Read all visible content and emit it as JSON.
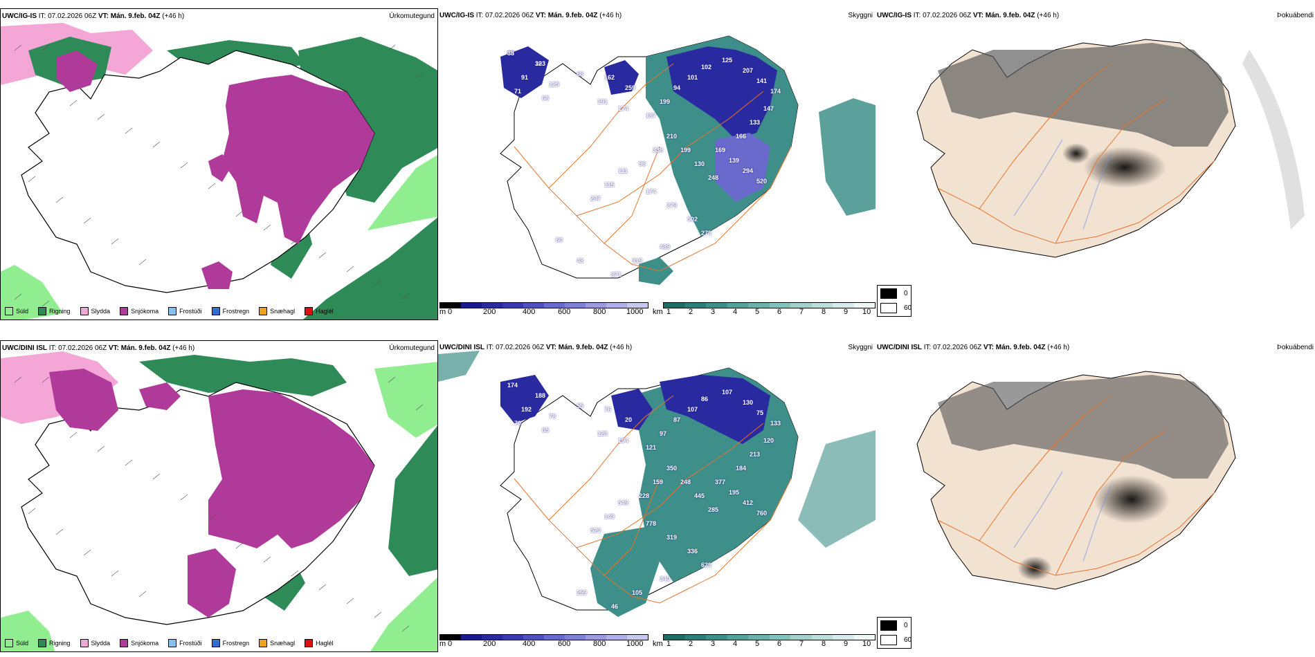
{
  "rows": [
    {
      "id": "top",
      "model": "UWC/IG-IS",
      "it_label": "IT:",
      "it_value": "07.02.2026 06Z",
      "vt_label": "VT:",
      "vt_value": "Mán. 9.feb. 04Z",
      "lead": "(+46 h)",
      "titles": {
        "precip": "Úrkomutegund",
        "cloud": "Skyggni",
        "fog": "Þokuábendi"
      },
      "cloud_labels": [
        "83",
        "103",
        "91",
        "125",
        "71",
        "68",
        "68",
        "162",
        "259",
        "191",
        "174",
        "187",
        "199",
        "94",
        "101",
        "102",
        "125",
        "207",
        "141",
        "174",
        "147",
        "133",
        "166",
        "169",
        "139",
        "294",
        "520",
        "248",
        "130",
        "199",
        "210",
        "338",
        "96",
        "111",
        "115",
        "247",
        "174",
        "279",
        "502",
        "279",
        "489",
        "319",
        "871",
        "43",
        "60",
        "38",
        "32"
      ]
    },
    {
      "id": "bottom",
      "model": "UWC/DINI ISL",
      "it_label": "IT:",
      "it_value": "07.02.2026 06Z",
      "vt_label": "VT:",
      "vt_value": "Mán. 9.feb. 04Z",
      "lead": "(+46 h)",
      "titles": {
        "precip": "Úrkomutegund",
        "cloud": "Skyggni",
        "fog": "Þokuábendi"
      },
      "cloud_labels": [
        "174",
        "188",
        "192",
        "78",
        "70",
        "65",
        "55",
        "76",
        "20",
        "123",
        "194",
        "121",
        "97",
        "87",
        "107",
        "86",
        "107",
        "130",
        "75",
        "133",
        "120",
        "213",
        "184",
        "377",
        "195",
        "412",
        "760",
        "285",
        "445",
        "248",
        "350",
        "159",
        "228",
        "549",
        "149",
        "520",
        "778",
        "319",
        "336",
        "629",
        "340",
        "105",
        "46",
        "259"
      ]
    }
  ],
  "precip_legend": [
    {
      "label": "Súld",
      "color": "#90ee90"
    },
    {
      "label": "Rigning",
      "color": "#2e8b57"
    },
    {
      "label": "Slydda",
      "color": "#f4a6d7"
    },
    {
      "label": "Snjókoma",
      "color": "#b03a9a"
    },
    {
      "label": "Frostúði",
      "color": "#87c1f0"
    },
    {
      "label": "Frostregn",
      "color": "#2f6fd0"
    },
    {
      "label": "Snæhagl",
      "color": "#f0a020"
    },
    {
      "label": "Haglél",
      "color": "#e01010"
    }
  ],
  "cloudbase_bar": {
    "unit": "m",
    "ticks": [
      "0",
      "200",
      "400",
      "600",
      "800",
      "1000"
    ],
    "colors": [
      "#000000",
      "#1a1a8c",
      "#2a2aa0",
      "#3a3ab0",
      "#5050c0",
      "#6a6acc",
      "#8080d4",
      "#9a9adc",
      "#b0b0e4",
      "#c8c8ee"
    ]
  },
  "visibility_bar": {
    "unit": "km",
    "ticks": [
      "1",
      "2",
      "3",
      "4",
      "5",
      "6",
      "7",
      "8",
      "9",
      "10"
    ],
    "colors": [
      "#1f6b66",
      "#2e7d78",
      "#3e8f89",
      "#55a09a",
      "#6eb0aa",
      "#88c0bb",
      "#a2d0cb",
      "#bcdeda",
      "#d6ece9",
      "#f0f8f7"
    ]
  },
  "fog_legend": {
    "high": "0",
    "low": "60"
  },
  "colors": {
    "land": "#f2e2d2",
    "rain": "#2e8b57",
    "snow": "#b03a9a",
    "sleet": "#f4a6d7",
    "drizzle": "#90ee90",
    "cloudbase": "#2a2aa0",
    "visibility": "#3e8f89",
    "roads": "#e8742a"
  }
}
